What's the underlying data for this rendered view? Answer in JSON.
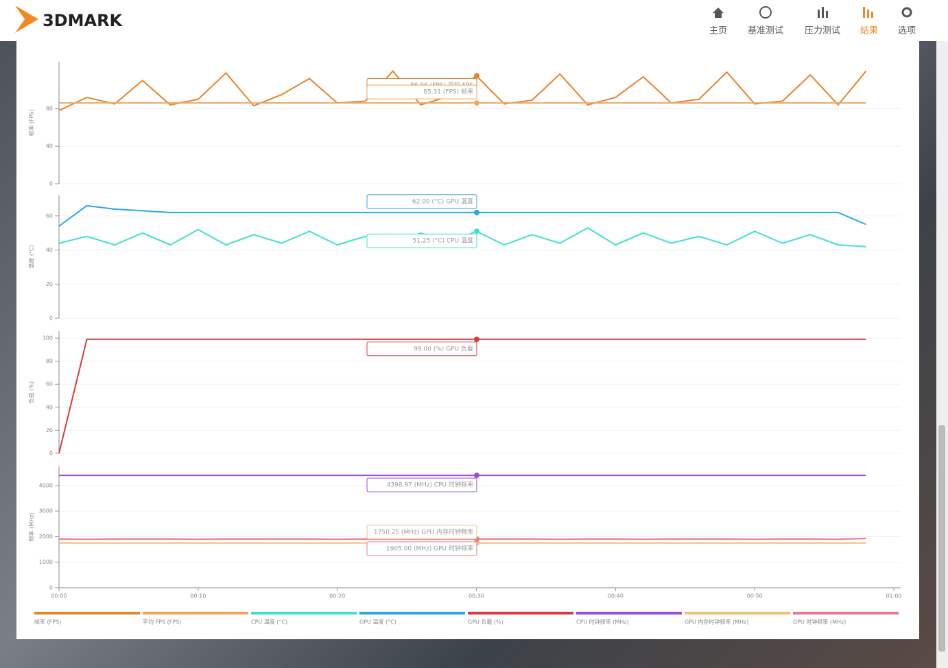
{
  "header": {
    "logo": "3DMARK",
    "nav": [
      "主页",
      "基准测试",
      "压力测试",
      "结果",
      "选项"
    ],
    "active": 3
  },
  "chart_data": [
    {
      "type": "line",
      "ylabel": "帧率 (FPS)",
      "xlim": [
        0,
        60
      ],
      "ylim": [
        0,
        130
      ],
      "yticks": [
        0,
        40,
        80
      ],
      "grid": true,
      "x": [
        0,
        2,
        4,
        6,
        8,
        10,
        12,
        14,
        16,
        18,
        20,
        22,
        24,
        26,
        28,
        30,
        32,
        34,
        36,
        38,
        40,
        42,
        44,
        46,
        48,
        50,
        52,
        54,
        56,
        58
      ],
      "annotations": [
        "86.06 (FPS) 平均 FPS",
        "85.31 (FPS) 帧率"
      ],
      "series": [
        {
          "name": "帧率 (FPS)",
          "color": "#e8832a",
          "values": [
            78,
            92,
            85,
            110,
            84,
            90,
            118,
            83,
            95,
            112,
            86,
            88,
            120,
            84,
            93,
            115,
            85,
            89,
            117,
            84,
            92,
            114,
            86,
            90,
            119,
            85,
            88,
            116,
            84,
            120
          ]
        },
        {
          "name": "平均 FPS (FPS)",
          "color": "#f2a65a",
          "values": [
            86.06,
            86.06,
            86.06,
            86.06,
            86.06,
            86.06,
            86.06,
            86.06,
            86.06,
            86.06,
            86.06,
            86.06,
            86.06,
            86.06,
            86.06,
            86.06,
            86.06,
            86.06,
            86.06,
            86.06,
            86.06,
            86.06,
            86.06,
            86.06,
            86.06,
            86.06,
            86.06,
            86.06,
            86.06,
            86.06
          ]
        }
      ]
    },
    {
      "type": "line",
      "ylabel": "温度 (°C)",
      "xlim": [
        0,
        60
      ],
      "ylim": [
        0,
        72
      ],
      "yticks": [
        0,
        20,
        40,
        60
      ],
      "grid": true,
      "x": [
        0,
        2,
        4,
        6,
        8,
        10,
        12,
        14,
        16,
        18,
        20,
        22,
        24,
        26,
        28,
        30,
        32,
        34,
        36,
        38,
        40,
        42,
        44,
        46,
        48,
        50,
        52,
        54,
        56,
        58
      ],
      "annotations": [
        "51.25 (°C) CPU 温度",
        "62.00 (°C) GPU 温度"
      ],
      "series": [
        {
          "name": "CPU 温度 (°C)",
          "color": "#3ee0d0",
          "values": [
            44,
            48,
            43,
            50,
            43,
            52,
            43,
            49,
            44,
            51,
            43,
            48,
            43,
            50,
            44,
            51,
            43,
            49,
            44,
            53,
            43,
            50,
            44,
            48,
            43,
            51,
            44,
            49,
            43,
            42
          ]
        },
        {
          "name": "GPU 温度 (°C)",
          "color": "#29a8e0",
          "values": [
            54,
            66,
            64,
            63,
            62,
            62,
            62,
            62,
            62,
            62,
            62,
            62,
            62,
            62,
            62,
            62,
            62,
            62,
            62,
            62,
            62,
            62,
            62,
            62,
            62,
            62,
            62,
            62,
            62,
            55
          ]
        }
      ]
    },
    {
      "type": "line",
      "ylabel": "负载 (%)",
      "xlim": [
        0,
        60
      ],
      "ylim": [
        0,
        106
      ],
      "yticks": [
        0,
        20,
        40,
        60,
        80,
        100
      ],
      "grid": true,
      "x": [
        0,
        2,
        4,
        6,
        8,
        10,
        12,
        14,
        16,
        18,
        20,
        22,
        24,
        26,
        28,
        30,
        32,
        34,
        36,
        38,
        40,
        42,
        44,
        46,
        48,
        50,
        52,
        54,
        56,
        58
      ],
      "annotations": [
        "99.00 (%) GPU 负载"
      ],
      "series": [
        {
          "name": "GPU 负载 (%)",
          "color": "#d83a3a",
          "values": [
            0,
            99,
            99,
            99,
            99,
            99,
            99,
            99,
            99,
            99,
            99,
            99,
            99,
            99,
            99,
            99,
            99,
            99,
            99,
            99,
            99,
            99,
            99,
            99,
            99,
            99,
            99,
            99,
            99,
            99
          ]
        }
      ]
    },
    {
      "type": "line",
      "ylabel": "频率 (MHz)",
      "xlim": [
        0,
        60
      ],
      "ylim": [
        0,
        4750
      ],
      "yticks": [
        0,
        1000,
        2000,
        3000,
        4000
      ],
      "grid": true,
      "x": [
        0,
        2,
        4,
        6,
        8,
        10,
        12,
        14,
        16,
        18,
        20,
        22,
        24,
        26,
        28,
        30,
        32,
        34,
        36,
        38,
        40,
        42,
        44,
        46,
        48,
        50,
        52,
        54,
        56,
        58
      ],
      "xticks": [
        {
          "value": 0,
          "label": "00:00"
        },
        {
          "value": 10,
          "label": "00:10"
        },
        {
          "value": 20,
          "label": "00:20"
        },
        {
          "value": 30,
          "label": "00:30"
        },
        {
          "value": 40,
          "label": "00:40"
        },
        {
          "value": 50,
          "label": "00:50"
        },
        {
          "value": 60,
          "label": "01:00"
        }
      ],
      "annotations": [
        "4398.97 (MHz) CPU 时钟频率",
        "1750.25 (MHz) GPU 内存时钟频率",
        "1905.00 (MHz) GPU 时钟频率"
      ],
      "series": [
        {
          "name": "CPU 时钟频率 (MHz)",
          "color": "#9b4bd8",
          "values": [
            4399,
            4399,
            4399,
            4399,
            4399,
            4399,
            4399,
            4399,
            4399,
            4399,
            4399,
            4399,
            4399,
            4399,
            4399,
            4399,
            4399,
            4399,
            4399,
            4399,
            4399,
            4399,
            4399,
            4399,
            4399,
            4399,
            4399,
            4399,
            4399,
            4399
          ]
        },
        {
          "name": "GPU 内存时钟频率 (MHz)",
          "color": "#f0c070",
          "values": [
            1750,
            1750,
            1750,
            1750,
            1750,
            1750,
            1750,
            1750,
            1750,
            1750,
            1750,
            1750,
            1750,
            1750,
            1750,
            1750,
            1750,
            1750,
            1750,
            1750,
            1750,
            1750,
            1750,
            1750,
            1750,
            1750,
            1750,
            1750,
            1750,
            1750
          ]
        },
        {
          "name": "GPU 时钟频率 (MHz)",
          "color": "#e87890",
          "values": [
            1905,
            1900,
            1905,
            1910,
            1905,
            1900,
            1905,
            1905,
            1910,
            1905,
            1900,
            1905,
            1905,
            1900,
            1905,
            1905,
            1910,
            1905,
            1900,
            1905,
            1905,
            1900,
            1905,
            1910,
            1905,
            1900,
            1905,
            1905,
            1900,
            1930
          ]
        }
      ]
    }
  ]
}
